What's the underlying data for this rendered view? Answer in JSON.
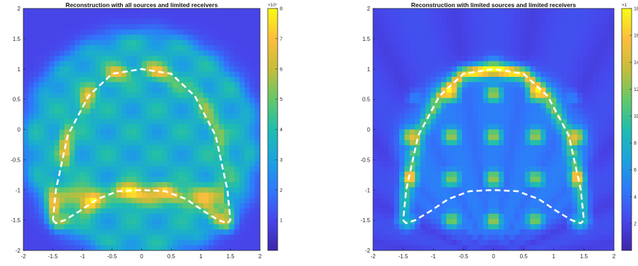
{
  "chart_data": [
    {
      "type": "heatmap",
      "title": "Reconstruction with all sources and limited receivers",
      "xlim": [
        -2,
        2
      ],
      "ylim": [
        -2,
        2
      ],
      "x_ticks": [
        -2,
        -1.5,
        -1,
        -0.5,
        0,
        0.5,
        1,
        1.5,
        2
      ],
      "y_ticks": [
        -2,
        -1.5,
        -1,
        -0.5,
        0,
        0.5,
        1,
        1.5,
        2
      ],
      "colorbar": {
        "range": [
          0,
          8
        ],
        "ticks": [
          1,
          2,
          3,
          4,
          5,
          6,
          7,
          8
        ],
        "exponent_label": "×10⁷"
      },
      "colormap": [
        "#3e26a8",
        "#4746eb",
        "#2f79fb",
        "#1ba3de",
        "#20bdaf",
        "#64c868",
        "#c6bd3a",
        "#fcbe3c",
        "#f9fb15"
      ],
      "overlay": {
        "style": "white dashed",
        "x": [
          -1.5,
          -1.45,
          -1.3,
          -1.05,
          -0.75,
          -0.4,
          0,
          0.4,
          0.75,
          1.05,
          1.3,
          1.45,
          1.5,
          1.45,
          1.25,
          0.9,
          0.5,
          0,
          -0.5,
          -0.9,
          -1.25,
          -1.45,
          -1.5
        ],
        "y": [
          -1.5,
          -1.55,
          -1.5,
          -1.35,
          -1.15,
          -1.02,
          -1.0,
          -1.02,
          -1.15,
          -1.35,
          -1.5,
          -1.55,
          -1.5,
          -1.0,
          -0.1,
          0.55,
          0.92,
          1.0,
          0.92,
          0.55,
          -0.1,
          -1.0,
          -1.5
        ]
      }
    },
    {
      "type": "heatmap",
      "title": "Reconstruction with limited sources and limited receivers",
      "xlim": [
        -2,
        2
      ],
      "ylim": [
        -2,
        2
      ],
      "x_ticks": [
        -2,
        -1.5,
        -1,
        -0.5,
        0,
        0.5,
        1,
        1.5,
        2
      ],
      "y_ticks": [
        -2,
        -1.5,
        -1,
        -0.5,
        0,
        0.5,
        1,
        1.5,
        2
      ],
      "colorbar": {
        "range": [
          0,
          18
        ],
        "ticks": [
          2,
          4,
          6,
          8,
          10,
          12,
          14,
          16,
          18
        ],
        "exponent_label": "×1"
      },
      "colormap": [
        "#3e26a8",
        "#4746eb",
        "#2f79fb",
        "#1ba3de",
        "#20bdaf",
        "#64c868",
        "#c6bd3a",
        "#fcbe3c",
        "#f9fb15"
      ],
      "overlay": {
        "style": "white dashed",
        "x": [
          -1.5,
          -1.45,
          -1.3,
          -1.05,
          -0.75,
          -0.4,
          0,
          0.4,
          0.75,
          1.05,
          1.3,
          1.45,
          1.5,
          1.45,
          1.25,
          0.9,
          0.5,
          0,
          -0.5,
          -0.9,
          -1.25,
          -1.45,
          -1.5
        ],
        "y": [
          -1.5,
          -1.55,
          -1.5,
          -1.35,
          -1.15,
          -1.02,
          -1.0,
          -1.02,
          -1.15,
          -1.35,
          -1.5,
          -1.55,
          -1.5,
          -1.0,
          -0.1,
          0.55,
          0.92,
          1.0,
          0.92,
          0.55,
          -0.1,
          -1.0,
          -1.5
        ]
      }
    }
  ]
}
